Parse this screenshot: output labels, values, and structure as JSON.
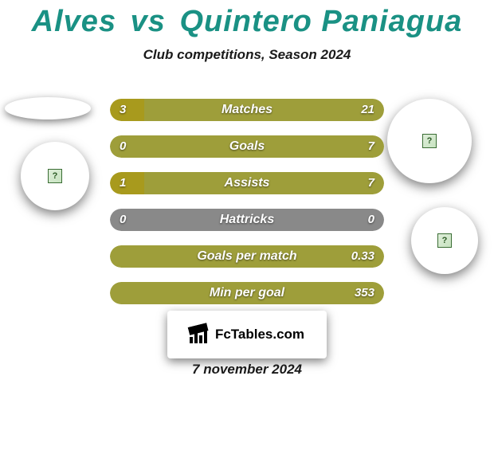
{
  "colors": {
    "title": "#1a9184",
    "player_left": "#a89a1d",
    "player_right": "#9e9e3a",
    "bar_zero_bg": "#898989",
    "brand_bg": "#ffffff",
    "text_dark": "#1a1a1a"
  },
  "header": {
    "player_left": "Alves",
    "vs": "vs",
    "player_right": "Quintero Paniagua",
    "subtitle": "Club competitions, Season 2024"
  },
  "stats": {
    "rows": [
      {
        "label": "Matches",
        "left": "3",
        "right": "21",
        "left_pct": 12.5,
        "right_pct": 87.5,
        "zero": false
      },
      {
        "label": "Goals",
        "left": "0",
        "right": "7",
        "left_pct": 0,
        "right_pct": 100,
        "zero": false
      },
      {
        "label": "Assists",
        "left": "1",
        "right": "7",
        "left_pct": 12.5,
        "right_pct": 87.5,
        "zero": false
      },
      {
        "label": "Hattricks",
        "left": "0",
        "right": "0",
        "left_pct": 50,
        "right_pct": 50,
        "zero": true
      },
      {
        "label": "Goals per match",
        "left": "",
        "right": "0.33",
        "left_pct": 0,
        "right_pct": 100,
        "zero": false
      },
      {
        "label": "Min per goal",
        "left": "",
        "right": "353",
        "left_pct": 0,
        "right_pct": 100,
        "zero": false
      }
    ]
  },
  "brand": {
    "text": "FcTables.com"
  },
  "date": "7 november 2024"
}
